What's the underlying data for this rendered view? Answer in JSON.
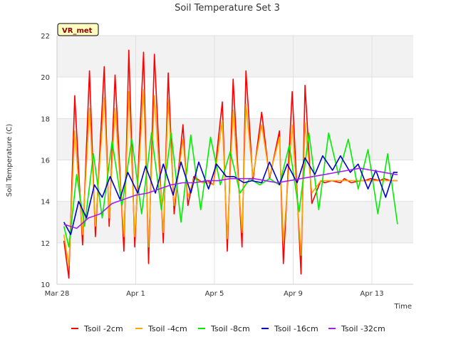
{
  "chart_data": {
    "type": "line",
    "title": "Soil Temperature Set 3",
    "xlabel": "Time",
    "ylabel": "Soil Temperature (C)",
    "badge": "VR_met",
    "xlim": [
      0,
      18.1
    ],
    "ylim": [
      10,
      22
    ],
    "x_ticks": [
      {
        "value": 0,
        "label": "Mar 28"
      },
      {
        "value": 4,
        "label": "Apr 1"
      },
      {
        "value": 8,
        "label": "Apr 5"
      },
      {
        "value": 12,
        "label": "Apr 9"
      },
      {
        "value": 16,
        "label": "Apr 13"
      }
    ],
    "y_ticks": [
      10,
      12,
      14,
      16,
      18,
      20,
      22
    ],
    "grid": true,
    "legend_position": "bottom",
    "series": [
      {
        "name": "Tsoil -2cm",
        "color": "#ff0000",
        "x": [
          0.35,
          0.6,
          0.9,
          1.3,
          1.65,
          1.95,
          2.4,
          2.65,
          2.95,
          3.4,
          3.65,
          3.95,
          4.4,
          4.65,
          4.95,
          5.4,
          5.65,
          5.95,
          6.4,
          6.65,
          6.95,
          7.4,
          7.65,
          7.95,
          8.4,
          8.65,
          8.95,
          9.4,
          9.6,
          9.95,
          10.4,
          10.8,
          11.3,
          11.5,
          11.95,
          12.4,
          12.6,
          12.95,
          13.4,
          13.6,
          13.95,
          14.4,
          14.6,
          14.95,
          15.4,
          15.6,
          15.95,
          16.4,
          16.6,
          16.95,
          17.3
        ],
        "y": [
          12.1,
          10.3,
          19.1,
          11.9,
          20.3,
          12.3,
          20.5,
          12.8,
          20.1,
          11.6,
          21.3,
          11.8,
          21.2,
          11.0,
          21.1,
          12.0,
          20.2,
          13.4,
          17.7,
          13.8,
          15.2,
          14.9,
          15.0,
          14.8,
          18.8,
          11.6,
          19.9,
          11.8,
          20.3,
          15.0,
          18.3,
          15.1,
          17.4,
          11.0,
          19.3,
          10.5,
          19.6,
          13.9,
          15.0,
          14.9,
          15.0,
          14.9,
          15.1,
          14.9,
          15.0,
          15.0,
          15.1,
          15.0,
          15.1,
          15.0,
          15.0
        ]
      },
      {
        "name": "Tsoil -4cm",
        "color": "#ffa500",
        "x": [
          0.35,
          0.6,
          0.9,
          1.3,
          1.65,
          1.95,
          2.4,
          2.65,
          2.95,
          3.4,
          3.65,
          3.95,
          4.4,
          4.65,
          4.95,
          5.4,
          5.65,
          5.95,
          6.4,
          6.65,
          6.95,
          7.4,
          7.65,
          7.95,
          8.4,
          8.65,
          8.95,
          9.4,
          9.6,
          9.95,
          10.4,
          10.8,
          11.3,
          11.5,
          11.95,
          12.4,
          12.6,
          12.95,
          13.4,
          13.6,
          13.95,
          14.4,
          14.6,
          14.95,
          15.4,
          15.6,
          15.95,
          16.4,
          16.6,
          16.95,
          17.3
        ],
        "y": [
          12.4,
          10.9,
          17.4,
          12.4,
          18.5,
          12.8,
          19.0,
          13.2,
          18.5,
          12.3,
          19.3,
          12.3,
          19.4,
          11.8,
          19.1,
          12.5,
          18.9,
          13.8,
          17.0,
          14.2,
          15.1,
          14.9,
          14.9,
          14.8,
          17.9,
          12.2,
          18.4,
          12.5,
          18.7,
          15.2,
          17.7,
          15.2,
          17.1,
          12.0,
          17.7,
          11.4,
          17.8,
          14.4,
          15.0,
          15.0,
          15.0,
          15.0,
          15.0,
          15.0,
          15.0,
          15.0,
          15.0,
          15.0,
          15.0,
          15.0,
          15.0
        ]
      },
      {
        "name": "Tsoil -8cm",
        "color": "#00ee00",
        "x": [
          0.35,
          0.6,
          1.0,
          1.4,
          1.85,
          2.3,
          2.8,
          3.3,
          3.8,
          4.3,
          4.8,
          5.3,
          5.8,
          6.3,
          6.8,
          7.3,
          7.8,
          8.3,
          8.8,
          9.3,
          9.8,
          10.3,
          10.8,
          11.3,
          11.8,
          12.3,
          12.8,
          13.3,
          13.8,
          14.3,
          14.8,
          15.3,
          15.8,
          16.3,
          16.8,
          17.3
        ],
        "y": [
          12.8,
          11.8,
          15.3,
          12.8,
          16.3,
          13.2,
          16.9,
          13.8,
          17.0,
          13.4,
          17.3,
          13.6,
          17.3,
          13.0,
          17.2,
          13.6,
          17.1,
          14.8,
          16.4,
          14.4,
          15.1,
          14.8,
          15.1,
          14.8,
          16.7,
          13.5,
          17.3,
          13.6,
          17.3,
          15.3,
          17.0,
          14.6,
          16.5,
          13.4,
          16.3,
          12.9
        ]
      },
      {
        "name": "Tsoil -16cm",
        "color": "#0000cd",
        "x": [
          0.35,
          0.7,
          1.1,
          1.5,
          1.9,
          2.3,
          2.7,
          3.2,
          3.6,
          4.1,
          4.5,
          5.0,
          5.4,
          5.9,
          6.3,
          6.8,
          7.2,
          7.7,
          8.1,
          8.6,
          9.0,
          9.5,
          9.9,
          10.4,
          10.8,
          11.3,
          11.7,
          12.2,
          12.6,
          13.1,
          13.5,
          14.0,
          14.4,
          14.9,
          15.3,
          15.8,
          16.2,
          16.7,
          17.1,
          17.3
        ],
        "y": [
          13.0,
          12.4,
          14.0,
          13.2,
          14.8,
          14.2,
          15.2,
          14.1,
          15.4,
          14.4,
          15.7,
          14.4,
          15.8,
          14.3,
          15.9,
          14.4,
          15.9,
          14.6,
          15.8,
          15.2,
          15.2,
          14.9,
          15.0,
          14.9,
          15.9,
          14.8,
          15.8,
          14.9,
          16.1,
          15.3,
          16.2,
          15.5,
          16.2,
          15.4,
          15.8,
          14.6,
          15.5,
          14.2,
          15.4,
          15.4
        ]
      },
      {
        "name": "Tsoil -32cm",
        "color": "#a020f0",
        "x": [
          0.35,
          1.0,
          1.6,
          2.2,
          2.8,
          3.4,
          4.0,
          4.6,
          5.2,
          5.8,
          6.4,
          7.0,
          7.6,
          8.2,
          8.8,
          9.4,
          10.0,
          10.6,
          11.2,
          11.8,
          12.4,
          13.0,
          13.6,
          14.2,
          14.8,
          15.4,
          16.0,
          16.6,
          17.2,
          17.3
        ],
        "y": [
          12.9,
          12.7,
          13.2,
          13.4,
          13.9,
          14.1,
          14.3,
          14.4,
          14.6,
          14.8,
          14.9,
          14.9,
          15.0,
          15.0,
          15.1,
          15.1,
          15.1,
          15.0,
          14.9,
          15.0,
          15.1,
          15.2,
          15.3,
          15.4,
          15.5,
          15.6,
          15.5,
          15.4,
          15.3,
          15.3
        ]
      }
    ]
  }
}
